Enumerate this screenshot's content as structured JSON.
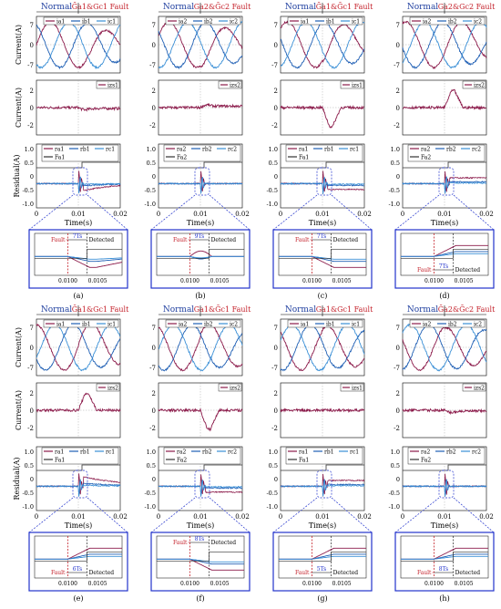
{
  "chart_data": {
    "type": "line",
    "x_label": "Time(s)",
    "x_ticks": [
      "0",
      "0.01",
      "0.02"
    ],
    "current_y_label": "Current(A)",
    "residual_y_label": "Residual(A)",
    "current_ticks": [
      "7",
      "0",
      "-7"
    ],
    "zs_ticks": [
      "2",
      "0",
      "-2"
    ],
    "residual_ticks": [
      "1.0",
      "0.5",
      "0",
      "-0.5",
      "-1.0"
    ],
    "zoom_ticks": [
      "0.0100",
      "0.0105"
    ],
    "normal_label": "Normal",
    "fault_marker": "Fault",
    "detected_label": "Detected",
    "panels": [
      {
        "caption": "(a)",
        "fault_label": "Ḡa1&Gc1 Fault",
        "cur": [
          "ia1",
          "ib1",
          "ic1"
        ],
        "zs": "izs1",
        "res": [
          "ra1",
          "rb1",
          "rc1"
        ],
        "flag": "Fa1",
        "delay": "7Ts",
        "layout": "top",
        "zs_shape": "dip_small",
        "res_shape": "neg_recover",
        "zoom_shape": "neg_recover",
        "fault": "a"
      },
      {
        "caption": "(b)",
        "fault_label": "Ga2&Ḡc2 Fault",
        "cur": [
          "ia2",
          "ib2",
          "ic2"
        ],
        "zs": "izs2",
        "res": [
          "ra2",
          "rb2",
          "rc2"
        ],
        "flag": "Fa2",
        "delay": "9Ts",
        "layout": "top",
        "zs_shape": "bump_small",
        "res_shape": "blip",
        "zoom_shape": "blip",
        "fault": "b"
      },
      {
        "caption": "(c)",
        "fault_label": "Ḡa1&Ḡc1 Fault",
        "cur": [
          "ia1",
          "ib1",
          "ic1"
        ],
        "zs": "izs1",
        "res": [
          "ra1",
          "rb1",
          "rc1"
        ],
        "flag": "Fa1",
        "delay": "7Ts",
        "layout": "top",
        "zs_shape": "dip_big",
        "res_shape": "neg_step",
        "zoom_shape": "neg_step",
        "fault": "c"
      },
      {
        "caption": "(d)",
        "fault_label": "Ga2&Gc2 Fault",
        "cur": [
          "ia2",
          "ib2",
          "ic2"
        ],
        "zs": "izs2",
        "res": [
          "ra2",
          "rb2",
          "rc2"
        ],
        "flag": "Fa2",
        "delay": "7Ts",
        "layout": "bottom",
        "zs_shape": "bump_big",
        "res_shape": "pos_step",
        "zoom_shape": "pos_step",
        "fault": "d"
      },
      {
        "caption": "(e)",
        "fault_label": "Ḡa1&Gc1 Fault",
        "cur": [
          "ia1",
          "ib1",
          "ic1"
        ],
        "zs": "izs2",
        "res": [
          "ra1",
          "rb1",
          "rc1"
        ],
        "flag": "Fa1",
        "delay": "6Ts",
        "layout": "bottom",
        "zs_shape": "bump_big",
        "res_shape": "pos_recover",
        "zoom_shape": "pos_recover",
        "fault": "e"
      },
      {
        "caption": "(f)",
        "fault_label": "Ga1&Ḡc1 Fault",
        "cur": [
          "ia2",
          "ib2",
          "ic2"
        ],
        "zs": "izs2",
        "res": [
          "ra2",
          "rb2",
          "rc2"
        ],
        "flag": "Fa2",
        "delay": "8Ts",
        "layout": "top",
        "zs_shape": "dip_big",
        "res_shape": "neg_step",
        "zoom_shape": "neg_step",
        "fault": "f"
      },
      {
        "caption": "(g)",
        "fault_label": "Ga1&Gc1 Fault",
        "cur": [
          "ia1",
          "ib1",
          "ic1"
        ],
        "zs": "izs1",
        "res": [
          "ra1",
          "rb1",
          "rc1"
        ],
        "flag": "Fa1",
        "delay": "5Ts",
        "layout": "bottom",
        "zs_shape": "flat",
        "res_shape": "pos_step",
        "zoom_shape": "pos_step",
        "fault": "g"
      },
      {
        "caption": "(h)",
        "fault_label": "Ḡa2&Ḡc2 Fault",
        "cur": [
          "ia2",
          "ib2",
          "ic2"
        ],
        "zs": "izs2",
        "res": [
          "ra2",
          "rb2",
          "rc2"
        ],
        "flag": "Fa2",
        "delay": "8Ts",
        "layout": "bottom",
        "zs_shape": "dip_small",
        "res_shape": "blip",
        "zoom_shape": "pos_step",
        "fault": "h"
      }
    ]
  },
  "colors": {
    "series_a": "#8b1a4a",
    "series_b": "#1f5fb4",
    "series_c": "#3a8fd6",
    "flag": "#333333",
    "fault_red": "#c4202a",
    "zoom_border": "#2233cc",
    "axis": "#000000",
    "grid": "#999999"
  }
}
